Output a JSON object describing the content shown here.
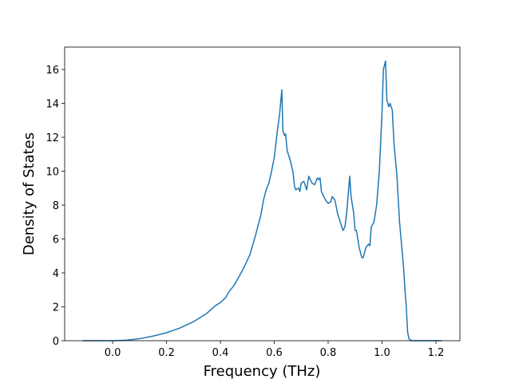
{
  "chart_data": {
    "type": "line",
    "xlabel": "Frequency (THz)",
    "ylabel": "Density of States",
    "xlim": [
      -0.178,
      1.289
    ],
    "ylim": [
      0,
      17.32
    ],
    "xticks": [
      {
        "value": 0.0,
        "label": "0.0"
      },
      0.2,
      0.4,
      0.6,
      0.8,
      {
        "value": 1.0,
        "label": "1.0"
      },
      1.2
    ],
    "yticks": [
      0,
      2,
      4,
      6,
      8,
      10,
      12,
      14,
      16
    ],
    "series": [
      {
        "color": "#1f77b4",
        "x": [
          -0.111,
          0.0,
          0.05,
          0.1,
          0.15,
          0.2,
          0.25,
          0.3,
          0.35,
          0.38,
          0.4,
          0.42,
          0.43,
          0.45,
          0.47,
          0.49,
          0.51,
          0.53,
          0.55,
          0.56,
          0.57,
          0.58,
          0.59,
          0.6,
          0.61,
          0.62,
          0.628,
          0.632,
          0.638,
          0.642,
          0.648,
          0.66,
          0.67,
          0.675,
          0.68,
          0.69,
          0.695,
          0.7,
          0.71,
          0.72,
          0.728,
          0.74,
          0.75,
          0.76,
          0.765,
          0.77,
          0.775,
          0.79,
          0.8,
          0.81,
          0.815,
          0.825,
          0.835,
          0.845,
          0.855,
          0.862,
          0.868,
          0.88,
          0.885,
          0.895,
          0.9,
          0.905,
          0.915,
          0.925,
          0.93,
          0.94,
          0.95,
          0.955,
          0.96,
          0.97,
          0.98,
          0.99,
          1.0,
          1.005,
          1.013,
          1.018,
          1.025,
          1.03,
          1.038,
          1.045,
          1.055,
          1.065,
          1.075,
          1.08,
          1.085,
          1.09,
          1.095,
          1.1,
          1.11,
          1.222
        ],
        "values": [
          0,
          0,
          0.03,
          0.12,
          0.27,
          0.47,
          0.75,
          1.12,
          1.62,
          2.05,
          2.25,
          2.55,
          2.85,
          3.25,
          3.8,
          4.4,
          5.1,
          6.2,
          7.4,
          8.3,
          8.9,
          9.3,
          10.0,
          10.8,
          12.2,
          13.4,
          14.8,
          12.4,
          12.1,
          12.2,
          11.2,
          10.6,
          9.9,
          9.1,
          8.9,
          9.0,
          8.8,
          9.3,
          9.4,
          8.9,
          9.7,
          9.3,
          9.2,
          9.6,
          9.5,
          9.6,
          8.8,
          8.3,
          8.1,
          8.2,
          8.5,
          8.3,
          7.5,
          7.0,
          6.5,
          6.7,
          7.4,
          9.7,
          8.5,
          7.5,
          6.5,
          6.5,
          5.5,
          4.9,
          4.9,
          5.5,
          5.7,
          5.6,
          6.7,
          7.0,
          8.0,
          10.0,
          13.5,
          16.0,
          16.5,
          14.2,
          13.8,
          14.0,
          13.6,
          11.5,
          9.8,
          7.0,
          5.2,
          4.3,
          3.0,
          2.0,
          0.5,
          0.1,
          0,
          0
        ]
      }
    ]
  }
}
